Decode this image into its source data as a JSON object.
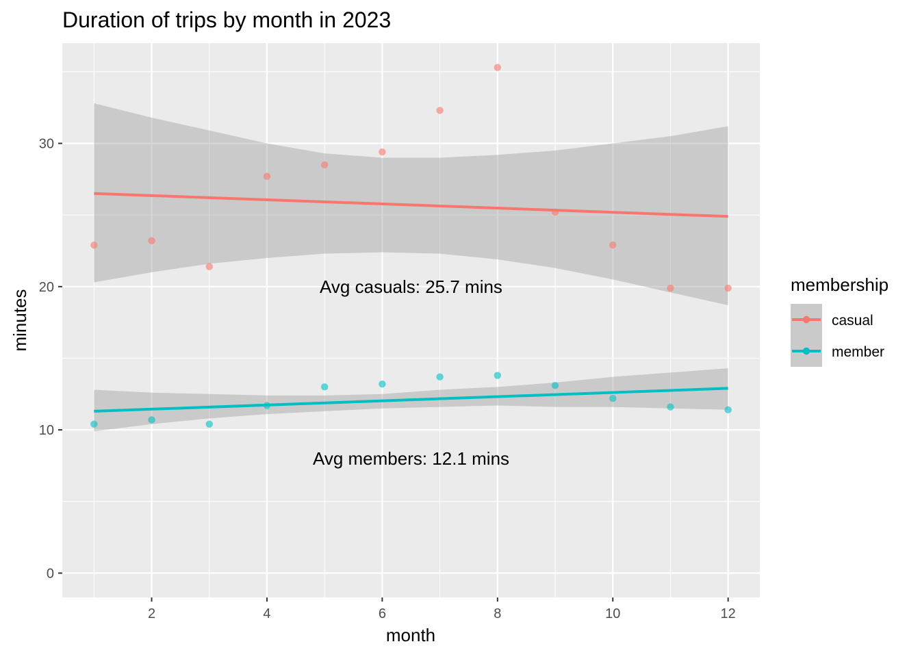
{
  "chart_data": {
    "type": "scatter",
    "title": "Duration of trips by month in 2023",
    "xlabel": "month",
    "ylabel": "minutes",
    "xlim": [
      0.45,
      12.55
    ],
    "ylim": [
      -1.7,
      37.0
    ],
    "x_ticks": [
      2,
      4,
      6,
      8,
      10,
      12
    ],
    "y_ticks": [
      0,
      10,
      20,
      30
    ],
    "x_tick_labels": [
      "2",
      "4",
      "6",
      "8",
      "10",
      "12"
    ],
    "y_tick_labels": [
      "0",
      "10",
      "20",
      "30"
    ],
    "grid": true,
    "panel_background": "#ebebeb",
    "band_color": "#999999",
    "legend": {
      "title": "membership",
      "placement": "right",
      "entries": [
        "casual",
        "member"
      ]
    },
    "series": [
      {
        "name": "casual",
        "color": "#f8766d",
        "x": [
          1,
          2,
          3,
          4,
          5,
          6,
          7,
          8,
          9,
          10,
          11,
          12
        ],
        "values": [
          22.9,
          23.2,
          21.4,
          27.7,
          28.5,
          29.4,
          32.3,
          35.3,
          25.2,
          22.9,
          19.9,
          19.9
        ],
        "trend": {
          "x": [
            1,
            12
          ],
          "y": [
            26.5,
            24.9
          ]
        },
        "band": {
          "x": [
            1,
            2,
            3,
            4,
            5,
            6,
            7,
            8,
            9,
            10,
            11,
            12
          ],
          "upper": [
            32.8,
            31.8,
            30.9,
            30.0,
            29.3,
            29.0,
            29.0,
            29.2,
            29.5,
            30.0,
            30.5,
            31.2
          ],
          "lower": [
            20.3,
            21.0,
            21.6,
            22.0,
            22.3,
            22.4,
            22.3,
            21.9,
            21.3,
            20.5,
            19.6,
            18.7
          ]
        }
      },
      {
        "name": "member",
        "color": "#00bfc4",
        "x": [
          1,
          2,
          3,
          4,
          5,
          6,
          7,
          8,
          9,
          10,
          11,
          12
        ],
        "values": [
          10.4,
          10.7,
          10.4,
          11.7,
          13.0,
          13.2,
          13.7,
          13.8,
          13.1,
          12.2,
          11.6,
          11.4
        ],
        "trend": {
          "x": [
            1,
            12
          ],
          "y": [
            11.3,
            12.9
          ]
        },
        "band": {
          "x": [
            1,
            2,
            3,
            4,
            5,
            6,
            7,
            8,
            9,
            10,
            11,
            12
          ],
          "upper": [
            12.8,
            12.6,
            12.5,
            12.4,
            12.4,
            12.5,
            12.8,
            13.0,
            13.3,
            13.7,
            14.0,
            14.3
          ],
          "lower": [
            9.9,
            10.4,
            10.8,
            11.1,
            11.3,
            11.5,
            11.6,
            11.7,
            11.6,
            11.6,
            11.5,
            11.4
          ]
        }
      }
    ],
    "annotations": [
      {
        "text": "Avg casuals:  25.7 mins",
        "x": 6.5,
        "y": 20.0
      },
      {
        "text": "Avg members:  12.1 mins",
        "x": 6.5,
        "y": 8.0
      }
    ]
  }
}
